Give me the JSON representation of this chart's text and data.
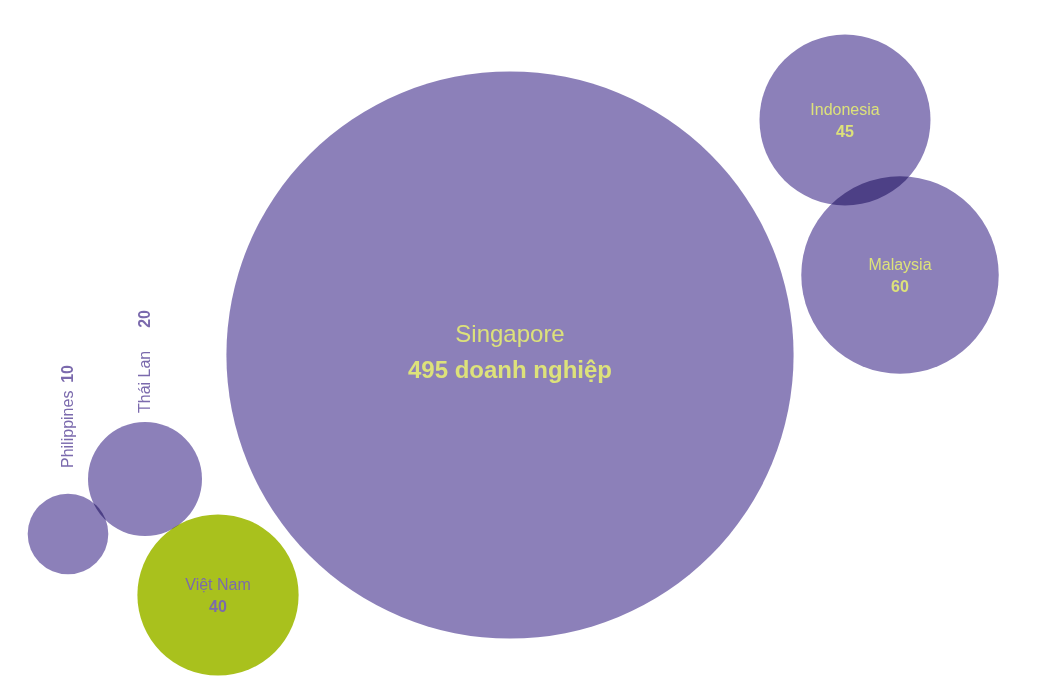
{
  "chart_data": {
    "type": "other",
    "categories": [
      "Singapore",
      "Indonesia",
      "Malaysia",
      "Việt Nam",
      "Thái Lan",
      "Philippines"
    ],
    "values": [
      495,
      45,
      60,
      40,
      20,
      10
    ],
    "value_labels": [
      "495 doanh nghiệp",
      "45",
      "60",
      "40",
      "20",
      "10"
    ],
    "colors": [
      "#8c80b9",
      "#8c80b9",
      "#8c80b9",
      "#a9c11d",
      "#8c80b9",
      "#8c80b9"
    ]
  }
}
